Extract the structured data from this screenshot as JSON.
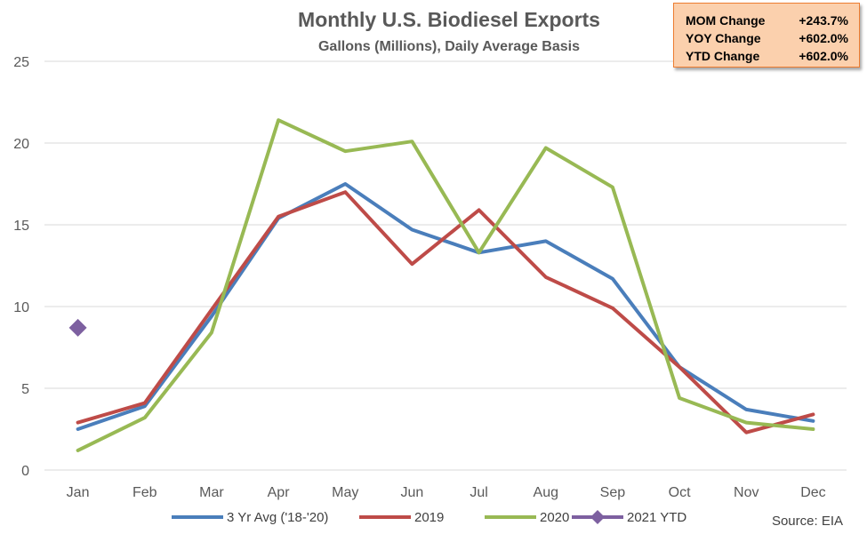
{
  "stats": [
    {
      "label": "MOM Change",
      "value": "+243.7%"
    },
    {
      "label": "YOY Change",
      "value": "+602.0%"
    },
    {
      "label": "YTD Change",
      "value": "+602.0%"
    }
  ],
  "source": "Source: EIA",
  "chart_data": {
    "type": "line",
    "title": "Monthly U.S. Biodiesel Exports",
    "subtitle": "Gallons (Millions), Daily Average Basis",
    "xlabel": "",
    "ylabel": "",
    "ylim": [
      0,
      25
    ],
    "yticks": [
      0,
      5,
      10,
      15,
      20,
      25
    ],
    "grid": true,
    "legend_position": "bottom",
    "categories": [
      "Jan",
      "Feb",
      "Mar",
      "Apr",
      "May",
      "Jun",
      "Jul",
      "Aug",
      "Sep",
      "Oct",
      "Nov",
      "Dec"
    ],
    "series": [
      {
        "name": "3 Yr Avg ('18-'20)",
        "color": "#4a7ebb",
        "style": "line",
        "values": [
          2.5,
          3.9,
          9.4,
          15.4,
          17.5,
          14.7,
          13.3,
          14.0,
          11.7,
          6.3,
          3.7,
          3.0
        ]
      },
      {
        "name": "2019",
        "color": "#be4b48",
        "style": "line",
        "values": [
          2.9,
          4.1,
          9.8,
          15.5,
          17.0,
          12.6,
          15.9,
          11.8,
          9.9,
          6.3,
          2.3,
          3.4
        ]
      },
      {
        "name": "2020",
        "color": "#98b954",
        "style": "line",
        "values": [
          1.2,
          3.2,
          8.4,
          21.4,
          19.5,
          20.1,
          13.3,
          19.7,
          17.3,
          4.4,
          2.9,
          2.5
        ]
      },
      {
        "name": "2021 YTD",
        "color": "#7d60a0",
        "style": "marker",
        "values": [
          8.7,
          null,
          null,
          null,
          null,
          null,
          null,
          null,
          null,
          null,
          null,
          null
        ]
      }
    ]
  }
}
